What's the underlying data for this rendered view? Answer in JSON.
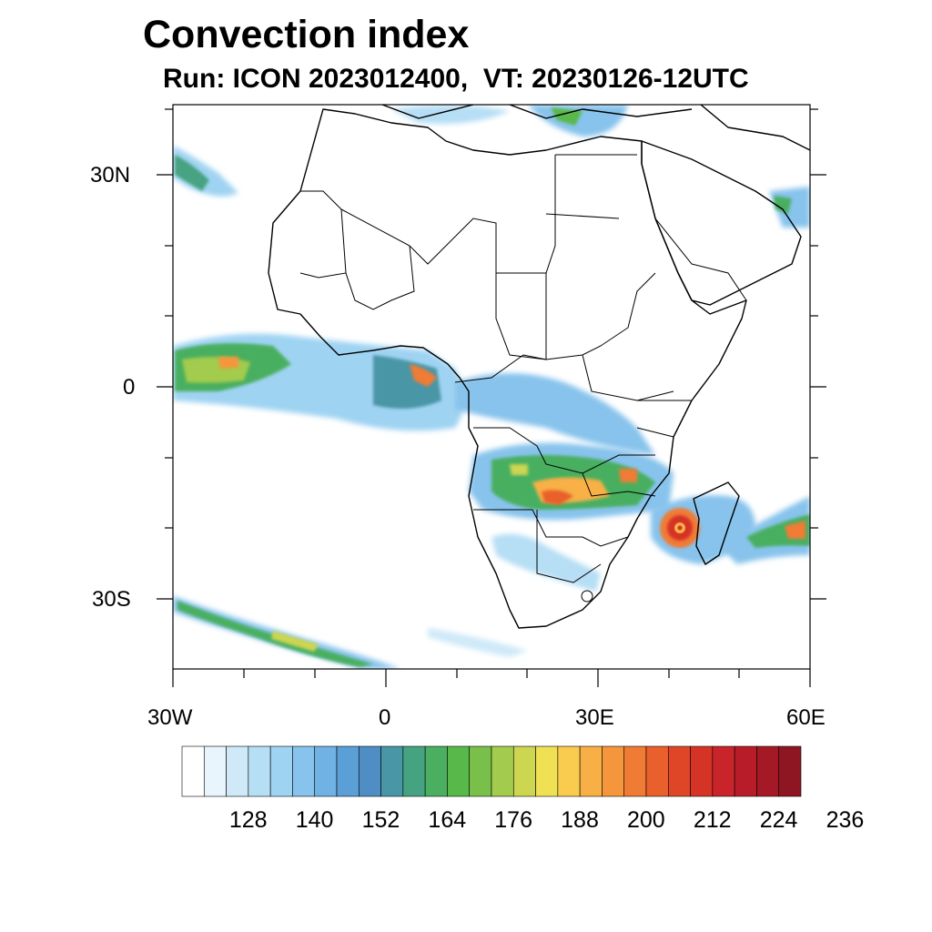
{
  "title": "Convection index",
  "subtitle": "Run: ICON 2023012400,  VT: 20230126-12UTC",
  "axes": {
    "lat_labels": [
      "30N",
      "0",
      "30S"
    ],
    "lon_labels": [
      "30W",
      "0",
      "30E",
      "60E"
    ]
  },
  "colorbar": {
    "labels": [
      "128",
      "140",
      "152",
      "164",
      "176",
      "188",
      "200",
      "212",
      "224",
      "236"
    ],
    "colors": [
      "#ffffff",
      "#e8f5fc",
      "#cfe9f8",
      "#b6def5",
      "#9fd3f2",
      "#87c3ec",
      "#70b2e4",
      "#5b9fd7",
      "#4f8dc5",
      "#4896a6",
      "#46a381",
      "#4aaf61",
      "#58b849",
      "#79c04a",
      "#a3cb4d",
      "#ccd651",
      "#efe153",
      "#f9cb4e",
      "#f8b046",
      "#f5963d",
      "#f07b34",
      "#e9602c",
      "#df4627",
      "#d63327",
      "#c92429",
      "#b81c29",
      "#a51926",
      "#8e1622"
    ]
  },
  "legend_title": ""
}
